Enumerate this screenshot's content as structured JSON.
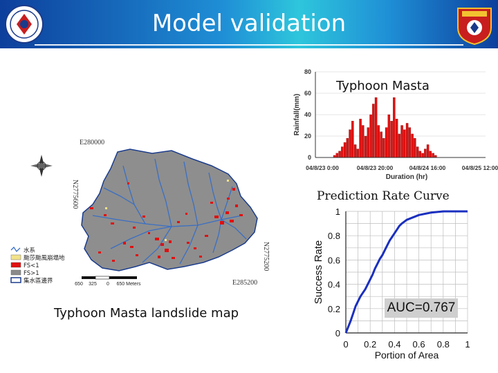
{
  "slide": {
    "title": "Model validation"
  },
  "rainfall_chart": {
    "caption": "Typhoon Masta",
    "chart_data": {
      "type": "bar",
      "ylabel": "Rainfall(mm)",
      "xlabel": "Duration (hr)",
      "ylim": [
        0,
        80
      ],
      "yticks": [
        "0",
        "20",
        "40",
        "60",
        "80"
      ],
      "xticks": [
        "04/8/23 0:00",
        "04/8/23 20:00",
        "04/8/24 16:00",
        "04/8/25 12:00"
      ],
      "values": [
        2,
        4,
        6,
        10,
        14,
        18,
        26,
        34,
        12,
        8,
        36,
        30,
        20,
        28,
        40,
        50,
        56,
        30,
        24,
        18,
        28,
        40,
        34,
        56,
        36,
        22,
        30,
        26,
        32,
        28,
        22,
        18,
        10,
        6,
        4,
        8,
        12,
        6,
        4,
        2
      ],
      "bar_color": "#e01010"
    }
  },
  "prediction_chart": {
    "caption": "Prediction Rate Curve",
    "auc_label": "AUC=0.767",
    "chart_data": {
      "type": "line",
      "xlabel": "Portion of Area",
      "ylabel": "Success Rate",
      "xlim": [
        0,
        1
      ],
      "ylim": [
        0,
        1
      ],
      "xticks": [
        "0",
        "0.2",
        "0.4",
        "0.6",
        "0.8",
        "1"
      ],
      "yticks": [
        "0",
        "0.2",
        "0.4",
        "0.6",
        "0.8",
        "1"
      ],
      "series": [
        {
          "name": "success rate",
          "color": "#1a2fbf",
          "x": [
            0,
            0.02,
            0.04,
            0.06,
            0.08,
            0.1,
            0.12,
            0.14,
            0.16,
            0.18,
            0.2,
            0.22,
            0.24,
            0.26,
            0.28,
            0.3,
            0.32,
            0.34,
            0.36,
            0.38,
            0.4,
            0.42,
            0.44,
            0.46,
            0.5,
            0.55,
            0.6,
            0.65,
            0.7,
            0.75,
            0.8,
            0.85,
            0.9,
            1.0
          ],
          "y": [
            0,
            0.05,
            0.1,
            0.16,
            0.22,
            0.26,
            0.3,
            0.33,
            0.36,
            0.4,
            0.44,
            0.48,
            0.53,
            0.57,
            0.61,
            0.64,
            0.68,
            0.72,
            0.76,
            0.79,
            0.82,
            0.85,
            0.88,
            0.9,
            0.93,
            0.95,
            0.97,
            0.98,
            0.99,
            0.995,
            1.0,
            1.0,
            1.0,
            1.0
          ]
        }
      ]
    }
  },
  "landslide_map": {
    "caption": "Typhoon Masta landslide map",
    "top_coord": "E280000",
    "bottom_coord": "E285200",
    "left_coord": "N2775600",
    "right_coord": "N2775200",
    "scale_labels": [
      "650",
      "325",
      "0",
      "650 Meters"
    ],
    "legend": [
      {
        "label": "水系",
        "color": "#3a6fc4"
      },
      {
        "label": "颱莎颱風崩塌地",
        "color": "#f2e28a"
      },
      {
        "label": "FS<1",
        "color": "#e01010"
      },
      {
        "label": "FS>1",
        "color": "#8a8a8a"
      },
      {
        "label": "集水區邊界",
        "color": "#1b3c8c"
      }
    ]
  }
}
